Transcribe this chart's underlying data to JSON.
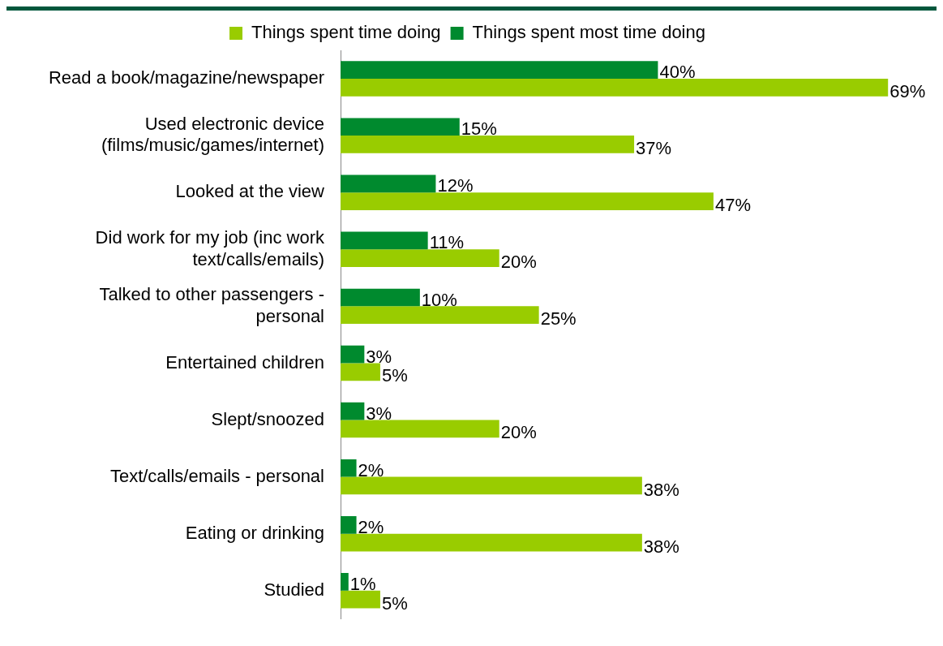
{
  "chart_data": {
    "type": "bar",
    "orientation": "horizontal",
    "legend": "top",
    "data_labels": true,
    "categories": [
      "Read a book/magazine/newspaper",
      "Used electronic device (films/music/games/internet)",
      "Looked at the view",
      "Did work for my job (inc work text/calls/emails)",
      "Talked to other passengers - personal",
      "Entertained children",
      "Slept/snoozed",
      "Text/calls/emails - personal",
      "Eating or drinking",
      "Studied"
    ],
    "series": [
      {
        "name": "Things spent time doing",
        "color": "#99cc00",
        "values": [
          69,
          37,
          47,
          20,
          25,
          5,
          20,
          38,
          38,
          5
        ],
        "value_labels": [
          "69%",
          "37%",
          "47%",
          "20%",
          "25%",
          "5%",
          "20%",
          "38%",
          "38%",
          "5%"
        ]
      },
      {
        "name": "Things spent most time doing",
        "color": "#008a2e",
        "values": [
          40,
          15,
          12,
          11,
          10,
          3,
          3,
          2,
          2,
          1
        ],
        "value_labels": [
          "40%",
          "15%",
          "12%",
          "11%",
          "10%",
          "3%",
          "3%",
          "2%",
          "2%",
          "1%"
        ]
      }
    ]
  }
}
